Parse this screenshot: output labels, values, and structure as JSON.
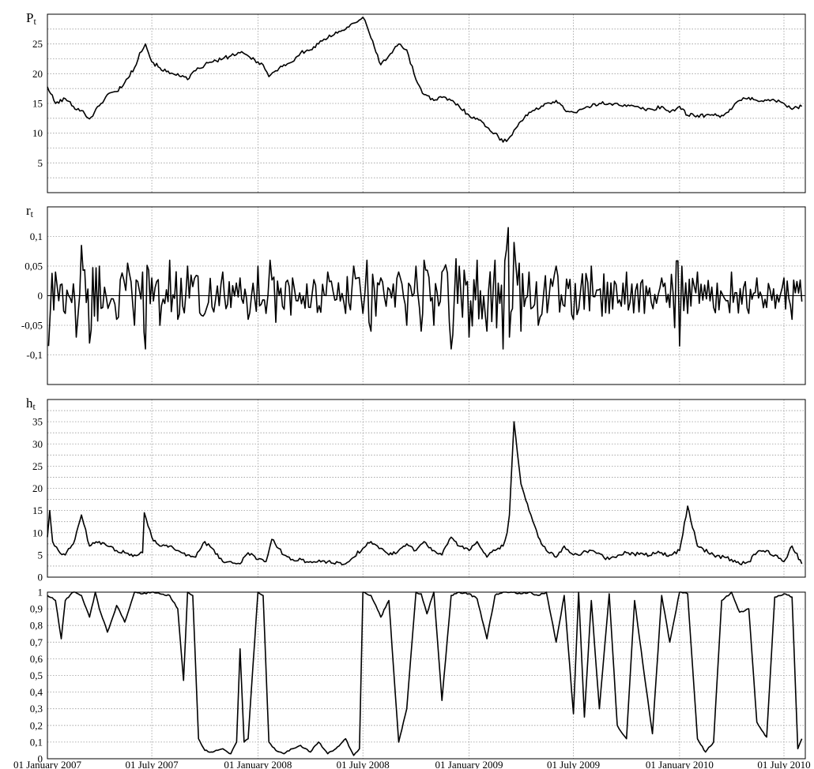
{
  "chart_data": [
    {
      "type": "line",
      "ylabel": "P",
      "ylabel_sub": "t",
      "ylim": [
        0,
        30
      ],
      "yticks": [
        {
          "v": 5,
          "label": "5"
        },
        {
          "v": 10,
          "label": "10"
        },
        {
          "v": 15,
          "label": "15"
        },
        {
          "v": 20,
          "label": "20"
        },
        {
          "v": 25,
          "label": "25"
        }
      ],
      "grid": true,
      "series": [
        {
          "color": "#000000",
          "x": [
            "2007-01-01",
            "2007-01-15",
            "2007-02-01",
            "2007-02-15",
            "2007-03-01",
            "2007-03-15",
            "2007-04-01",
            "2007-04-15",
            "2007-05-01",
            "2007-05-15",
            "2007-06-01",
            "2007-06-10",
            "2007-06-20",
            "2007-07-01",
            "2007-07-15",
            "2007-08-01",
            "2007-08-15",
            "2007-09-01",
            "2007-09-15",
            "2007-10-01",
            "2007-10-15",
            "2007-11-01",
            "2007-11-15",
            "2007-12-01",
            "2007-12-15",
            "2008-01-01",
            "2008-01-10",
            "2008-01-20",
            "2008-02-01",
            "2008-02-15",
            "2008-03-01",
            "2008-03-15",
            "2008-04-01",
            "2008-04-15",
            "2008-05-01",
            "2008-05-15",
            "2008-06-01",
            "2008-06-15",
            "2008-07-01",
            "2008-07-08",
            "2008-07-15",
            "2008-08-01",
            "2008-08-15",
            "2008-09-01",
            "2008-09-15",
            "2008-10-01",
            "2008-10-15",
            "2008-11-01",
            "2008-11-15",
            "2008-12-01",
            "2008-12-15",
            "2009-01-01",
            "2009-01-15",
            "2009-02-01",
            "2009-02-15",
            "2009-03-01",
            "2009-03-10",
            "2009-03-20",
            "2009-04-01",
            "2009-04-15",
            "2009-05-01",
            "2009-05-15",
            "2009-06-01",
            "2009-06-15",
            "2009-07-01",
            "2009-07-15",
            "2009-08-01",
            "2009-08-15",
            "2009-09-01",
            "2009-09-15",
            "2009-10-01",
            "2009-10-15",
            "2009-11-01",
            "2009-11-15",
            "2009-12-01",
            "2009-12-15",
            "2010-01-01",
            "2010-01-15",
            "2010-02-01",
            "2010-02-15",
            "2010-03-01",
            "2010-03-15",
            "2010-04-01",
            "2010-04-15",
            "2010-05-01",
            "2010-05-15",
            "2010-06-01",
            "2010-06-15",
            "2010-07-01",
            "2010-07-15",
            "2010-08-01"
          ],
          "y": [
            17.8,
            15.0,
            15.8,
            14.5,
            13.8,
            12.4,
            14.6,
            16.5,
            17.0,
            18.5,
            21.0,
            23.5,
            25.0,
            22.0,
            21.0,
            20.0,
            20.0,
            19.0,
            20.5,
            21.5,
            22.0,
            22.5,
            23.0,
            23.5,
            23.0,
            22.0,
            21.5,
            19.5,
            20.5,
            21.5,
            22.0,
            23.5,
            24.0,
            25.0,
            26.0,
            27.0,
            27.5,
            28.5,
            29.5,
            28.0,
            26.0,
            21.5,
            23.0,
            25.0,
            24.0,
            19.0,
            16.5,
            15.5,
            16.0,
            15.5,
            14.5,
            13.0,
            12.5,
            11.0,
            10.0,
            8.5,
            9.0,
            10.5,
            12.0,
            13.5,
            14.0,
            15.0,
            15.5,
            14.0,
            13.5,
            14.0,
            14.5,
            15.0,
            15.0,
            15.0,
            14.5,
            14.5,
            14.0,
            14.0,
            14.5,
            13.5,
            14.5,
            13.0,
            13.0,
            13.0,
            13.0,
            13.0,
            14.0,
            15.5,
            16.0,
            15.5,
            15.5,
            15.5,
            15.0,
            14.0,
            14.5
          ]
        }
      ]
    },
    {
      "type": "line",
      "ylabel": "r",
      "ylabel_sub": "t",
      "ylim": [
        -0.15,
        0.15
      ],
      "yticks": [
        {
          "v": -0.1,
          "label": "-0,1"
        },
        {
          "v": -0.05,
          "label": "-0,05"
        },
        {
          "v": 0,
          "label": "0"
        },
        {
          "v": 0.05,
          "label": "0,05"
        },
        {
          "v": 0.1,
          "label": "0,1"
        }
      ],
      "grid": true,
      "zero_line": true,
      "series": [
        {
          "color": "#000000",
          "x": [
            "2007-01-03",
            "2007-01-15",
            "2007-02-01",
            "2007-02-15",
            "2007-02-20",
            "2007-03-01",
            "2007-03-15",
            "2007-04-01",
            "2007-05-01",
            "2007-05-20",
            "2007-06-01",
            "2007-06-15",
            "2007-06-20",
            "2007-07-01",
            "2007-07-15",
            "2007-08-01",
            "2007-08-15",
            "2007-09-01",
            "2007-10-01",
            "2007-11-01",
            "2007-11-15",
            "2007-12-01",
            "2007-12-15",
            "2008-01-01",
            "2008-01-15",
            "2008-01-22",
            "2008-02-01",
            "2008-03-01",
            "2008-04-01",
            "2008-05-01",
            "2008-06-01",
            "2008-06-15",
            "2008-07-01",
            "2008-07-08",
            "2008-07-15",
            "2008-08-01",
            "2008-09-01",
            "2008-09-15",
            "2008-10-01",
            "2008-10-10",
            "2008-10-15",
            "2008-11-01",
            "2008-11-15",
            "2008-12-01",
            "2008-12-15",
            "2009-01-01",
            "2009-01-15",
            "2009-02-01",
            "2009-02-15",
            "2009-03-01",
            "2009-03-10",
            "2009-03-12",
            "2009-03-20",
            "2009-04-01",
            "2009-04-15",
            "2009-05-01",
            "2009-06-01",
            "2009-07-01",
            "2009-08-01",
            "2009-09-01",
            "2009-10-01",
            "2009-11-01",
            "2009-12-01",
            "2009-12-15",
            "2010-01-01",
            "2010-01-05",
            "2010-01-15",
            "2010-02-01",
            "2010-03-01",
            "2010-04-01",
            "2010-05-01",
            "2010-05-15",
            "2010-06-01",
            "2010-07-01",
            "2010-07-15",
            "2010-08-01"
          ],
          "y": [
            -0.085,
            0.04,
            -0.03,
            0.02,
            -0.07,
            0.085,
            -0.08,
            0.05,
            -0.04,
            0.055,
            -0.05,
            0.04,
            -0.09,
            0.03,
            -0.05,
            0.06,
            -0.04,
            0.05,
            -0.03,
            0.04,
            -0.02,
            0.03,
            -0.04,
            0.05,
            -0.03,
            0.06,
            -0.045,
            0.03,
            -0.02,
            0.04,
            -0.03,
            0.05,
            -0.03,
            0.06,
            -0.06,
            0.03,
            0.04,
            -0.05,
            0.05,
            -0.06,
            0.06,
            -0.05,
            0.04,
            -0.09,
            0.05,
            -0.07,
            0.06,
            -0.06,
            0.06,
            -0.09,
            0.115,
            -0.07,
            0.09,
            -0.06,
            0.04,
            -0.05,
            0.05,
            -0.04,
            0.05,
            -0.03,
            0.04,
            -0.03,
            0.03,
            -0.02,
            -0.085,
            0.05,
            -0.03,
            0.04,
            -0.02,
            0.04,
            -0.03,
            0.03,
            -0.02,
            0.03,
            -0.04,
            -0.01
          ]
        }
      ]
    },
    {
      "type": "line",
      "ylabel": "h",
      "ylabel_sub": "t",
      "ylim": [
        0,
        40
      ],
      "yticks": [
        {
          "v": 0,
          "label": "0"
        },
        {
          "v": 5,
          "label": "5"
        },
        {
          "v": 10,
          "label": "10"
        },
        {
          "v": 15,
          "label": "15"
        },
        {
          "v": 20,
          "label": "20"
        },
        {
          "v": 25,
          "label": "25"
        },
        {
          "v": 30,
          "label": "30"
        },
        {
          "v": 35,
          "label": "35"
        }
      ],
      "grid": true,
      "series": [
        {
          "color": "#000000",
          "x": [
            "2007-01-01",
            "2007-01-05",
            "2007-01-10",
            "2007-01-20",
            "2007-02-01",
            "2007-02-15",
            "2007-03-01",
            "2007-03-05",
            "2007-03-15",
            "2007-04-01",
            "2007-04-15",
            "2007-05-01",
            "2007-05-15",
            "2007-06-01",
            "2007-06-15",
            "2007-06-18",
            "2007-07-01",
            "2007-07-15",
            "2007-08-01",
            "2007-08-15",
            "2007-09-01",
            "2007-09-15",
            "2007-10-01",
            "2007-11-01",
            "2007-11-15",
            "2007-12-01",
            "2007-12-15",
            "2008-01-01",
            "2008-01-15",
            "2008-01-25",
            "2008-02-15",
            "2008-03-01",
            "2008-04-01",
            "2008-05-01",
            "2008-06-01",
            "2008-07-01",
            "2008-07-15",
            "2008-08-01",
            "2008-08-15",
            "2008-09-01",
            "2008-09-15",
            "2008-10-01",
            "2008-10-15",
            "2008-11-01",
            "2008-11-15",
            "2008-12-01",
            "2008-12-15",
            "2009-01-01",
            "2009-01-15",
            "2009-02-01",
            "2009-02-15",
            "2009-03-01",
            "2009-03-08",
            "2009-03-12",
            "2009-03-20",
            "2009-04-01",
            "2009-04-15",
            "2009-05-01",
            "2009-05-15",
            "2009-06-01",
            "2009-06-15",
            "2009-07-01",
            "2009-08-01",
            "2009-09-01",
            "2009-10-01",
            "2009-11-01",
            "2009-12-01",
            "2009-12-15",
            "2010-01-01",
            "2010-01-15",
            "2010-02-01",
            "2010-03-01",
            "2010-04-01",
            "2010-04-15",
            "2010-05-01",
            "2010-05-15",
            "2010-06-01",
            "2010-07-01",
            "2010-07-15",
            "2010-08-01"
          ],
          "y": [
            9.0,
            15.0,
            8.0,
            6.0,
            5.0,
            7.5,
            14.0,
            12.0,
            7.0,
            8.0,
            7.0,
            6.0,
            5.5,
            5.0,
            5.5,
            14.5,
            9.0,
            7.0,
            7.0,
            6.0,
            5.0,
            4.5,
            8.0,
            3.5,
            3.5,
            3.0,
            5.5,
            4.0,
            3.5,
            8.5,
            5.0,
            4.0,
            3.5,
            3.5,
            3.0,
            6.5,
            8.0,
            6.5,
            5.0,
            6.0,
            7.5,
            6.0,
            8.0,
            6.0,
            5.0,
            9.0,
            7.0,
            6.0,
            8.0,
            4.5,
            6.0,
            7.0,
            10.0,
            14.0,
            35.0,
            21.0,
            15.0,
            9.0,
            6.0,
            4.5,
            7.0,
            5.0,
            6.0,
            4.0,
            5.5,
            5.0,
            5.5,
            5.0,
            6.0,
            16.0,
            7.0,
            5.0,
            4.0,
            3.0,
            3.5,
            5.5,
            6.0,
            3.5,
            7.0,
            3.0
          ]
        }
      ]
    },
    {
      "type": "line",
      "ylim": [
        0,
        1
      ],
      "yticks": [
        {
          "v": 0,
          "label": "0"
        },
        {
          "v": 0.1,
          "label": "0,1"
        },
        {
          "v": 0.2,
          "label": "0,2"
        },
        {
          "v": 0.3,
          "label": "0,3"
        },
        {
          "v": 0.4,
          "label": "0,4"
        },
        {
          "v": 0.5,
          "label": "0,5"
        },
        {
          "v": 0.6,
          "label": "0,6"
        },
        {
          "v": 0.7,
          "label": "0,7"
        },
        {
          "v": 0.8,
          "label": "0,8"
        },
        {
          "v": 0.9,
          "label": "0,9"
        },
        {
          "v": 1,
          "label": "1"
        }
      ],
      "grid": true,
      "series": [
        {
          "color": "#000000",
          "x": [
            "2007-01-01",
            "2007-01-15",
            "2007-01-25",
            "2007-02-01",
            "2007-02-15",
            "2007-03-01",
            "2007-03-15",
            "2007-03-25",
            "2007-04-01",
            "2007-04-15",
            "2007-05-01",
            "2007-05-15",
            "2007-06-01",
            "2007-06-15",
            "2007-07-01",
            "2007-07-15",
            "2007-08-01",
            "2007-08-15",
            "2007-08-25",
            "2007-09-01",
            "2007-09-10",
            "2007-09-20",
            "2007-10-01",
            "2007-10-15",
            "2007-11-01",
            "2007-11-15",
            "2007-11-25",
            "2007-12-01",
            "2007-12-08",
            "2007-12-15",
            "2008-01-01",
            "2008-01-10",
            "2008-01-20",
            "2008-02-01",
            "2008-02-15",
            "2008-03-01",
            "2008-03-15",
            "2008-04-01",
            "2008-04-15",
            "2008-05-01",
            "2008-05-15",
            "2008-06-01",
            "2008-06-15",
            "2008-06-25",
            "2008-07-01",
            "2008-07-15",
            "2008-08-01",
            "2008-08-15",
            "2008-09-01",
            "2008-09-15",
            "2008-10-01",
            "2008-10-10",
            "2008-10-20",
            "2008-11-01",
            "2008-11-15",
            "2008-12-01",
            "2008-12-15",
            "2009-01-01",
            "2009-01-15",
            "2009-02-01",
            "2009-02-15",
            "2009-03-01",
            "2009-03-15",
            "2009-04-01",
            "2009-04-15",
            "2009-05-01",
            "2009-05-15",
            "2009-06-01",
            "2009-06-15",
            "2009-07-01",
            "2009-07-10",
            "2009-07-20",
            "2009-08-01",
            "2009-08-15",
            "2009-09-01",
            "2009-09-15",
            "2009-10-01",
            "2009-10-15",
            "2009-11-01",
            "2009-11-15",
            "2009-12-01",
            "2009-12-15",
            "2010-01-01",
            "2010-01-15",
            "2010-02-01",
            "2010-02-15",
            "2010-03-01",
            "2010-03-15",
            "2010-04-01",
            "2010-04-15",
            "2010-05-01",
            "2010-05-15",
            "2010-06-01",
            "2010-06-15",
            "2010-07-01",
            "2010-07-15",
            "2010-07-25",
            "2010-08-01"
          ],
          "y": [
            0.98,
            0.95,
            0.72,
            0.95,
            1.0,
            0.98,
            0.85,
            1.0,
            0.9,
            0.76,
            0.92,
            0.82,
            1.0,
            0.99,
            1.0,
            0.99,
            0.98,
            0.9,
            0.47,
            1.0,
            0.98,
            0.12,
            0.05,
            0.04,
            0.06,
            0.03,
            0.1,
            0.66,
            0.1,
            0.12,
            1.0,
            0.98,
            0.1,
            0.05,
            0.03,
            0.06,
            0.08,
            0.04,
            0.1,
            0.03,
            0.06,
            0.12,
            0.02,
            0.06,
            1.0,
            0.98,
            0.85,
            0.95,
            0.1,
            0.3,
            1.0,
            0.99,
            0.87,
            1.0,
            0.35,
            0.98,
            1.0,
            0.99,
            0.96,
            0.72,
            0.98,
            1.0,
            1.0,
            0.99,
            1.0,
            0.98,
            1.0,
            0.7,
            0.98,
            0.27,
            1.0,
            0.25,
            0.95,
            0.3,
            0.99,
            0.2,
            0.12,
            0.95,
            0.5,
            0.15,
            0.98,
            0.7,
            1.0,
            0.99,
            0.12,
            0.04,
            0.1,
            0.95,
            1.0,
            0.88,
            0.9,
            0.22,
            0.13,
            0.97,
            0.99,
            0.97,
            0.06,
            0.12
          ]
        }
      ]
    }
  ],
  "xaxis": {
    "ticks": [
      {
        "date": "2007-01-01",
        "label": "01 January 2007"
      },
      {
        "date": "2007-07-01",
        "label": "01 July 2007"
      },
      {
        "date": "2008-01-01",
        "label": "01 January 2008"
      },
      {
        "date": "2008-07-01",
        "label": "01 July 2008"
      },
      {
        "date": "2009-01-01",
        "label": "01 January 2009"
      },
      {
        "date": "2009-07-01",
        "label": "01 July 2009"
      },
      {
        "date": "2010-01-01",
        "label": "01 January 2010"
      },
      {
        "date": "2010-07-01",
        "label": "01 July 2010"
      }
    ],
    "range": [
      "2007-01-01",
      "2010-08-07"
    ]
  }
}
